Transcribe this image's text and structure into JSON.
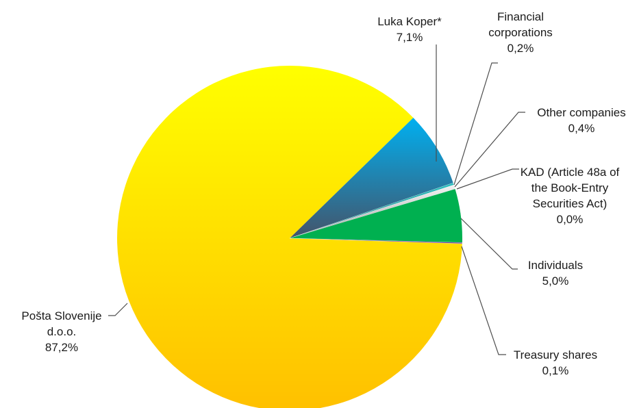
{
  "chart_data": {
    "type": "pie",
    "title": "",
    "legend": "none",
    "slices": [
      {
        "name": "Pošta Slovenije d.o.o.",
        "value": 87.2,
        "value_label": "87,2%",
        "label_lines": [
          "Pošta Slovenije",
          "d.o.o.",
          "87,2%"
        ],
        "colors": [
          "#ffff00",
          "#ffc000"
        ]
      },
      {
        "name": "Luka Koper*",
        "value": 7.1,
        "value_label": "7,1%",
        "label_lines": [
          "Luka Koper*",
          "7,1%"
        ],
        "colors": [
          "#00b0f0",
          "#44546a"
        ]
      },
      {
        "name": "Financial corporations",
        "value": 0.2,
        "value_label": "0,2%",
        "label_lines": [
          "Financial",
          "corporations",
          "0,2%"
        ],
        "colors": [
          "#2fc0c0",
          "#168080"
        ]
      },
      {
        "name": "Other companies",
        "value": 0.4,
        "value_label": "0,4%",
        "label_lines": [
          "Other companies",
          "0,4%"
        ],
        "colors": [
          "#f2f2f2",
          "#a6a6a6"
        ]
      },
      {
        "name": "KAD (Article 48a of the Book-Entry Securities Act)",
        "value": 0.0,
        "value_label": "0,0%",
        "label_lines": [
          "KAD (Article 48a of",
          "the Book-Entry",
          "Securities Act)",
          "0,0%"
        ],
        "colors": [
          "#d9d9d9",
          "#808080"
        ]
      },
      {
        "name": "Individuals",
        "value": 5.0,
        "value_label": "5,0%",
        "label_lines": [
          "Individuals",
          "5,0%"
        ],
        "colors": [
          "#00b050",
          "#00b050"
        ]
      },
      {
        "name": "Treasury shares",
        "value": 0.1,
        "value_label": "0,1%",
        "label_lines": [
          "Treasury shares",
          "0,1%"
        ],
        "colors": [
          "#7030a0",
          "#7030a0"
        ]
      }
    ]
  }
}
